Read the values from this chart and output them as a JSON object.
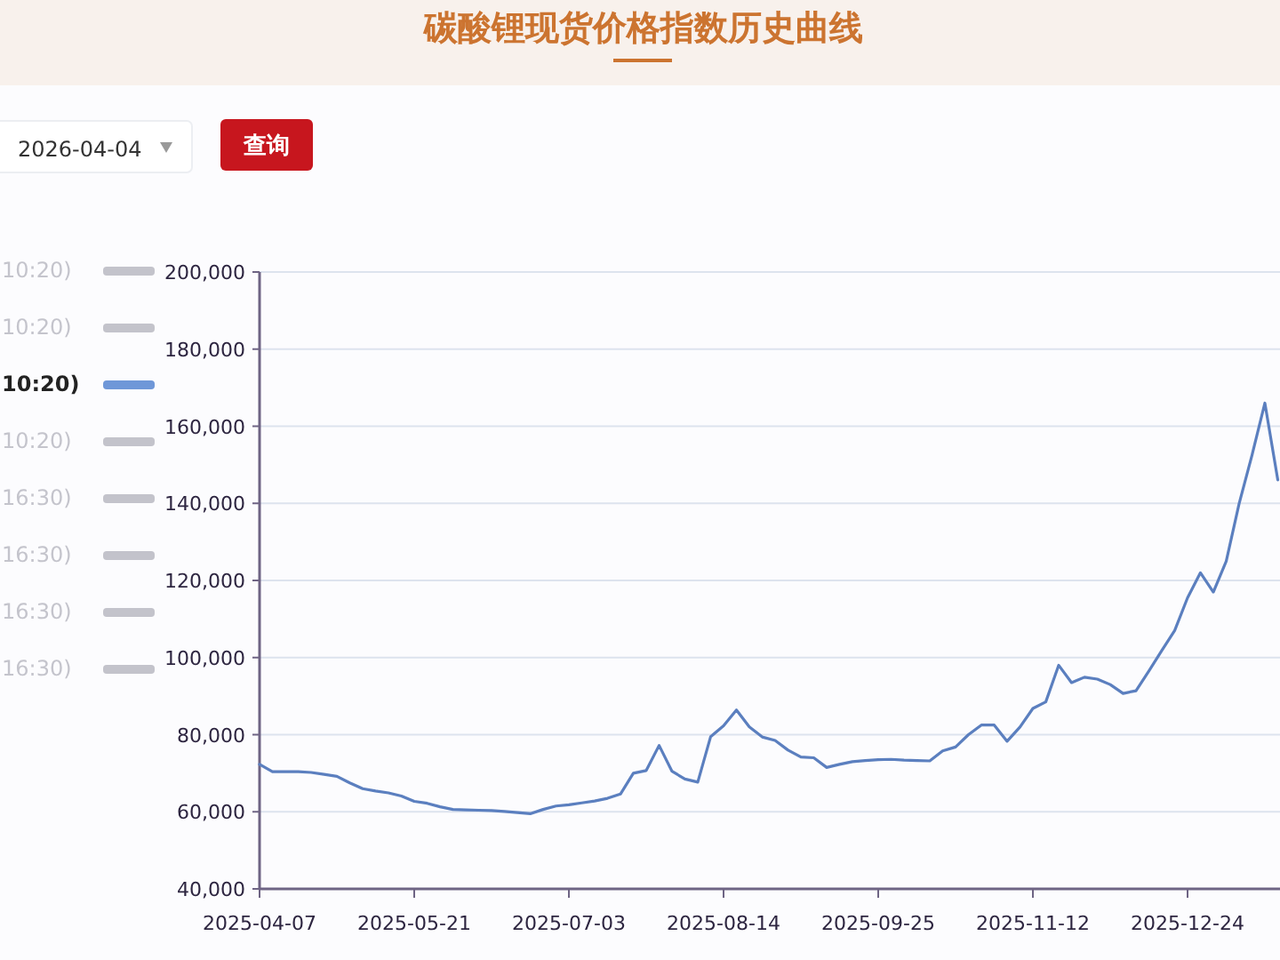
{
  "chart_data": {
    "type": "line",
    "title": "碳酸锂现货价格指数历史曲线",
    "categories": [
      "2025-04-07",
      null,
      null,
      null,
      null,
      null,
      null,
      null,
      null,
      null,
      null,
      null,
      "2025-05-21",
      null,
      null,
      null,
      null,
      null,
      null,
      null,
      null,
      null,
      null,
      null,
      "2025-07-03",
      null,
      null,
      null,
      null,
      null,
      null,
      null,
      null,
      null,
      null,
      null,
      "2025-08-14",
      null,
      null,
      null,
      null,
      null,
      null,
      null,
      null,
      null,
      null,
      null,
      "2025-09-25",
      null,
      null,
      null,
      null,
      null,
      null,
      null,
      null,
      null,
      null,
      null,
      "2025-11-12",
      null,
      null,
      null,
      null,
      null,
      null,
      null,
      null,
      null,
      null,
      null,
      "2025-12-24",
      null,
      null,
      null,
      null,
      null,
      null,
      null
    ],
    "series": [
      {
        "color": "#5b7fbf",
        "values": [
          72300,
          70400,
          70400,
          70400,
          70200,
          69700,
          69200,
          67500,
          66000,
          65400,
          64900,
          64100,
          62700,
          62200,
          61300,
          60600,
          60500,
          60400,
          60300,
          60100,
          59800,
          59500,
          60600,
          61500,
          61800,
          62300,
          62800,
          63500,
          64600,
          70000,
          70700,
          77200,
          70500,
          68500,
          67700,
          79500,
          82300,
          86400,
          82000,
          79400,
          78500,
          76000,
          74200,
          74000,
          71500,
          72300,
          73000,
          73300,
          73500,
          73600,
          73400,
          73300,
          73200,
          75800,
          76800,
          80000,
          82500,
          82500,
          78300,
          82000,
          86800,
          88500,
          98000,
          93500,
          94900,
          94400,
          93000,
          90700,
          91400,
          96500,
          101800,
          107000,
          115500,
          122000,
          117000,
          125000,
          139900,
          152500,
          166000,
          146100
        ]
      }
    ],
    "ylim": [
      40000,
      200000
    ],
    "yticks": [
      {
        "value": 40000,
        "label": "40,000"
      },
      {
        "value": 60000,
        "label": "60,000"
      },
      {
        "value": 80000,
        "label": "80,000"
      },
      {
        "value": 100000,
        "label": "100,000"
      },
      {
        "value": 120000,
        "label": "120,000"
      },
      {
        "value": 140000,
        "label": "140,000"
      },
      {
        "value": 160000,
        "label": "160,000"
      },
      {
        "value": 180000,
        "label": "180,000"
      },
      {
        "value": 200000,
        "label": "200,000"
      }
    ],
    "grid": "y",
    "marker": "none",
    "line_style": "solid",
    "annotations": [
      "2026-04-04",
      "查询",
      "10:20)",
      "10:20)",
      "10:20)",
      "10:20)",
      "16:30)",
      "16:30)",
      "16:30)",
      "16:30)"
    ]
  }
}
